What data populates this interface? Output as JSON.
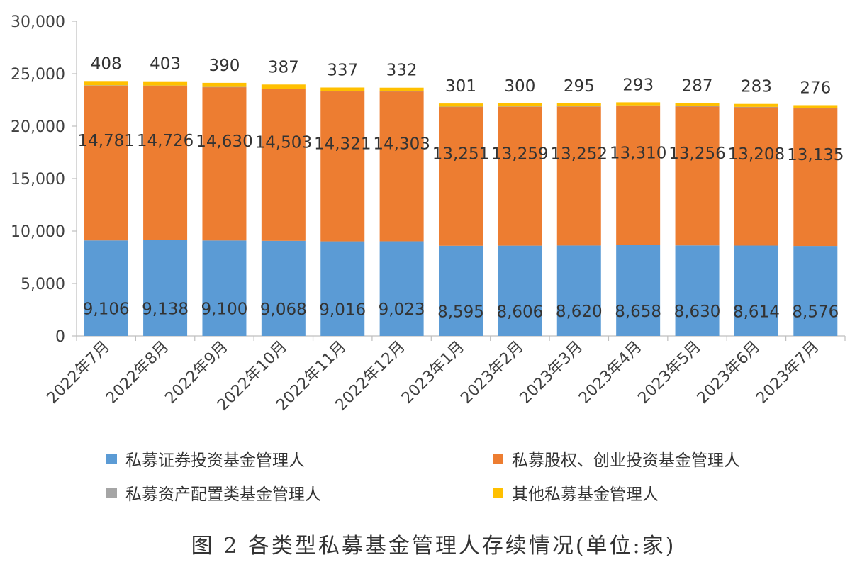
{
  "chart_data": {
    "type": "bar",
    "stacked": true,
    "categories": [
      "2022年7月",
      "2022年8月",
      "2022年9月",
      "2022年10月",
      "2022年11月",
      "2022年12月",
      "2023年1月",
      "2023年2月",
      "2023年3月",
      "2023年4月",
      "2023年5月",
      "2023年6月",
      "2023年7月"
    ],
    "series": [
      {
        "name": "私募证券投资基金管理人",
        "color": "#5b9bd5",
        "values": [
          9106,
          9138,
          9100,
          9068,
          9016,
          9023,
          8595,
          8606,
          8620,
          8658,
          8630,
          8614,
          8576
        ],
        "labels": [
          "9,106",
          "9,138",
          "9,100",
          "9,068",
          "9,016",
          "9,023",
          "8,595",
          "8,606",
          "8,620",
          "8,658",
          "8,630",
          "8,614",
          "8,576"
        ]
      },
      {
        "name": "私募股权、创业投资基金管理人",
        "color": "#ed7d31",
        "values": [
          14781,
          14726,
          14630,
          14503,
          14321,
          14303,
          13251,
          13259,
          13252,
          13310,
          13256,
          13208,
          13135
        ],
        "labels": [
          "14,781",
          "14,726",
          "14,630",
          "14,503",
          "14,321",
          "14,303",
          "13,251",
          "13,259",
          "13,252",
          "13,310",
          "13,256",
          "13,208",
          "13,135"
        ]
      },
      {
        "name": "私募资产配置类基金管理人",
        "color": "#a5a5a5",
        "values": [
          9,
          9,
          9,
          9,
          9,
          9,
          9,
          9,
          9,
          9,
          9,
          9,
          9
        ]
      },
      {
        "name": "其他私募基金管理人",
        "color": "#ffc000",
        "values": [
          408,
          403,
          390,
          387,
          337,
          332,
          301,
          300,
          295,
          293,
          287,
          283,
          276
        ],
        "labels": [
          "408",
          "403",
          "390",
          "387",
          "337",
          "332",
          "301",
          "300",
          "295",
          "293",
          "287",
          "283",
          "276"
        ]
      }
    ],
    "ylim": [
      0,
      30000
    ],
    "yticks": [
      0,
      5000,
      10000,
      15000,
      20000,
      25000,
      30000
    ],
    "ytick_labels": [
      "0",
      "5,000",
      "10,000",
      "15,000",
      "20,000",
      "25,000",
      "30,000"
    ],
    "legend_position": "bottom",
    "grid": false
  },
  "caption": "图 2  各类型私募基金管理人存续情况(单位:家)"
}
